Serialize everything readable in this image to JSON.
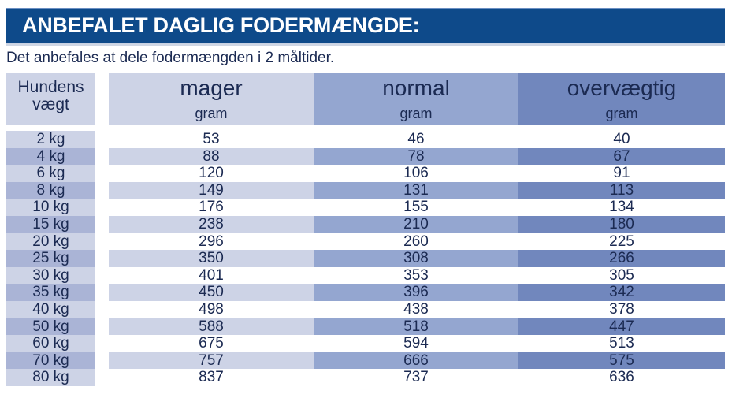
{
  "title": "ANBEFALET DAGLIG FODERMÆNGDE:",
  "subtitle": "Det anbefales at dele fodermængden i 2 måltider.",
  "header": {
    "weight_line1": "Hundens",
    "weight_line2": "vægt",
    "columns": [
      {
        "label": "mager",
        "unit": "gram"
      },
      {
        "label": "normal",
        "unit": "gram"
      },
      {
        "label": "overvægtig",
        "unit": "gram"
      }
    ]
  },
  "rows": [
    {
      "weight": "2 kg",
      "mager": "53",
      "normal": "46",
      "overvaegtig": "40"
    },
    {
      "weight": "4 kg",
      "mager": "88",
      "normal": "78",
      "overvaegtig": "67"
    },
    {
      "weight": "6 kg",
      "mager": "120",
      "normal": "106",
      "overvaegtig": "91"
    },
    {
      "weight": "8 kg",
      "mager": "149",
      "normal": "131",
      "overvaegtig": "113"
    },
    {
      "weight": "10 kg",
      "mager": "176",
      "normal": "155",
      "overvaegtig": "134"
    },
    {
      "weight": "15 kg",
      "mager": "238",
      "normal": "210",
      "overvaegtig": "180"
    },
    {
      "weight": "20 kg",
      "mager": "296",
      "normal": "260",
      "overvaegtig": "225"
    },
    {
      "weight": "25 kg",
      "mager": "350",
      "normal": "308",
      "overvaegtig": "266"
    },
    {
      "weight": "30 kg",
      "mager": "401",
      "normal": "353",
      "overvaegtig": "305"
    },
    {
      "weight": "35 kg",
      "mager": "450",
      "normal": "396",
      "overvaegtig": "342"
    },
    {
      "weight": "40 kg",
      "mager": "498",
      "normal": "438",
      "overvaegtig": "378"
    },
    {
      "weight": "50 kg",
      "mager": "588",
      "normal": "518",
      "overvaegtig": "447"
    },
    {
      "weight": "60 kg",
      "mager": "675",
      "normal": "594",
      "overvaegtig": "513"
    },
    {
      "weight": "70 kg",
      "mager": "757",
      "normal": "666",
      "overvaegtig": "575"
    },
    {
      "weight": "80 kg",
      "mager": "837",
      "normal": "737",
      "overvaegtig": "636"
    }
  ]
}
